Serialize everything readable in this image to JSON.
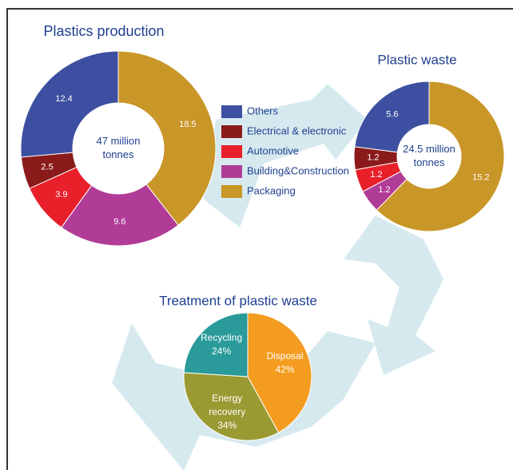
{
  "chart_data": [
    {
      "type": "donut",
      "title": "Plastics production",
      "center_label": [
        "47 million",
        "tonnes"
      ],
      "categories": [
        "Others",
        "Electrical & electronic",
        "Automotive",
        "Building&Construction",
        "Packaging"
      ],
      "values": [
        12.4,
        2.5,
        3.9,
        9.6,
        18.5
      ],
      "colors": [
        "#3d4fa0",
        "#8b1a1a",
        "#e8202a",
        "#b13c97",
        "#c99628"
      ],
      "counterclockwise": true,
      "legend": true
    },
    {
      "type": "donut",
      "title": "Plastic waste",
      "center_label": [
        "24.5 million",
        "tonnes"
      ],
      "values": [
        5.6,
        1.2,
        1.2,
        1.2,
        15.2
      ],
      "colors": [
        "#3d4fa0",
        "#8b1a1a",
        "#e8202a",
        "#b13c97",
        "#c99628"
      ],
      "counterclockwise": true
    },
    {
      "type": "pie",
      "title": "Treatment of plastic waste",
      "categories": [
        "Disposal",
        "Energy recovery",
        "Recycling"
      ],
      "values": [
        42,
        34,
        24
      ],
      "value_labels": [
        "42%",
        "34%",
        "24%"
      ],
      "colors": [
        "#f39c1f",
        "#9a9a33",
        "#2a9a9a"
      ],
      "counterclockwise": false
    }
  ]
}
